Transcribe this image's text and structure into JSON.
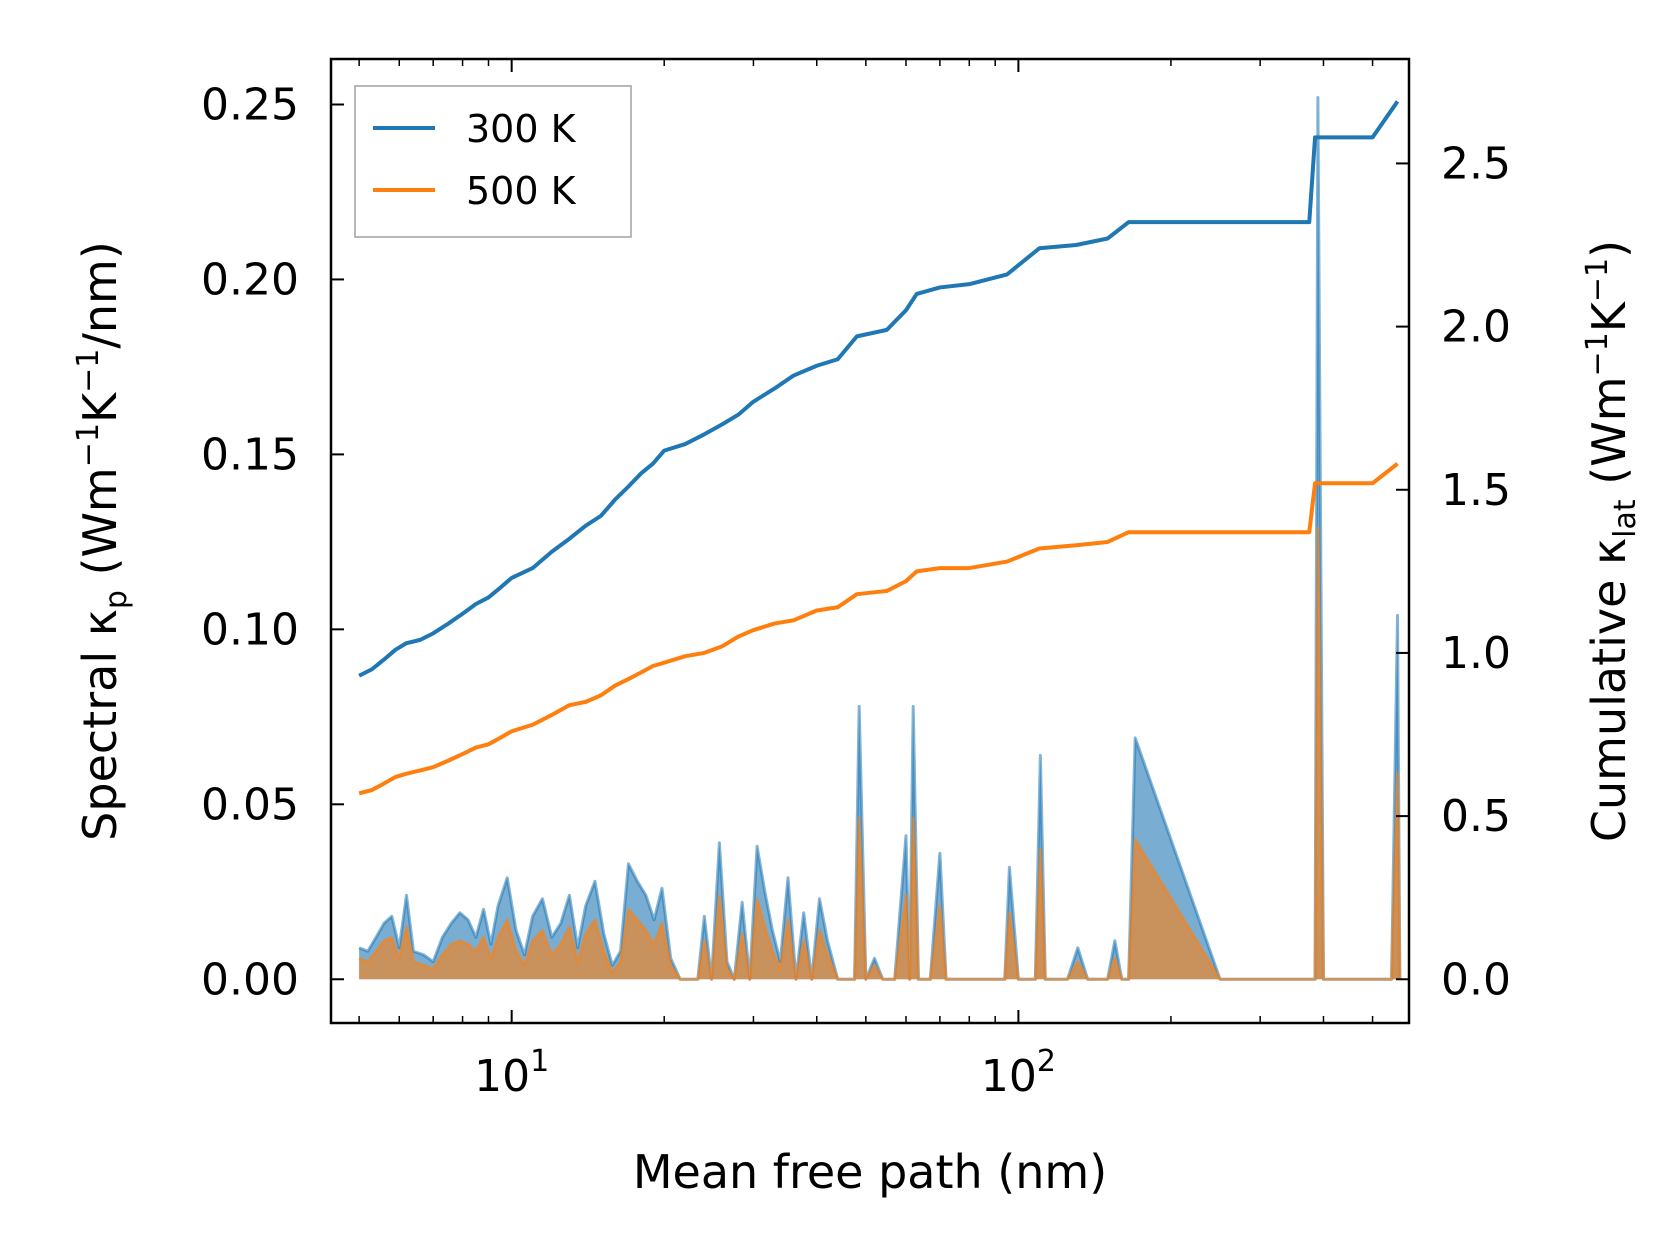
{
  "chart_data": {
    "type": "line",
    "title": "",
    "xlabel": "Mean free path (nm)",
    "ylabel_left": {
      "main": "Spectral κ",
      "sub": "p",
      "unit_prefix": " (Wm",
      "exp1": "−1",
      "mid": "K",
      "exp2": "−1",
      "unit_suffix": "/nm)"
    },
    "ylabel_right": {
      "main": "Cumulative κ",
      "sub": "lat",
      "unit_prefix": " (Wm",
      "exp1": "−1",
      "mid": "K",
      "exp2": "−1",
      "unit_suffix": ")"
    },
    "x_scale": "log",
    "xlim": [
      4.4,
      590
    ],
    "ylim_left": [
      -0.0125,
      0.263
    ],
    "ylim_right": [
      -0.134,
      2.82
    ],
    "x_ticks": [
      {
        "base": "10",
        "exp": "1",
        "value": 10
      },
      {
        "base": "10",
        "exp": "2",
        "value": 100
      }
    ],
    "y_ticks_left": [
      "0.00",
      "0.05",
      "0.10",
      "0.15",
      "0.20",
      "0.25"
    ],
    "y_tick_values_left": [
      0,
      0.05,
      0.1,
      0.15,
      0.2,
      0.25
    ],
    "y_ticks_right": [
      "0.0",
      "0.5",
      "1.0",
      "1.5",
      "2.0",
      "2.5"
    ],
    "y_tick_values_right": [
      0,
      0.5,
      1.0,
      1.5,
      2.0,
      2.5
    ],
    "legend": {
      "location": "upper-left",
      "entries": [
        "300 K",
        "500 K"
      ]
    },
    "colors": {
      "300 K": "#1f77b4",
      "500 K": "#ff7f0e"
    },
    "cumulative_series": [
      {
        "name": "300 K",
        "axis": "right",
        "x": [
          5.0,
          5.3,
          5.6,
          5.9,
          6.2,
          6.6,
          7.0,
          7.5,
          8.0,
          8.5,
          9.0,
          9.5,
          10.0,
          11.0,
          12.0,
          13.0,
          14.0,
          15.0,
          16.0,
          17.0,
          18.0,
          19.0,
          20.0,
          22.0,
          24.0,
          26.0,
          28.0,
          30.0,
          33.0,
          36.0,
          40.0,
          44.0,
          48.0,
          55.0,
          60.0,
          63.0,
          70.0,
          80.0,
          95.0,
          110.0,
          130.0,
          150.0,
          165.0,
          200.0,
          300.0,
          375.0,
          385.0,
          400.0,
          500.0,
          560.0
        ],
        "y": [
          0.93,
          0.95,
          0.98,
          1.01,
          1.03,
          1.04,
          1.06,
          1.09,
          1.12,
          1.15,
          1.17,
          1.2,
          1.23,
          1.26,
          1.31,
          1.35,
          1.39,
          1.42,
          1.47,
          1.51,
          1.55,
          1.58,
          1.62,
          1.64,
          1.67,
          1.7,
          1.73,
          1.77,
          1.81,
          1.85,
          1.88,
          1.9,
          1.97,
          1.99,
          2.05,
          2.1,
          2.12,
          2.13,
          2.16,
          2.24,
          2.25,
          2.27,
          2.32,
          2.32,
          2.32,
          2.32,
          2.58,
          2.58,
          2.58,
          2.69
        ]
      },
      {
        "name": "500 K",
        "axis": "right",
        "x": [
          5.0,
          5.3,
          5.6,
          5.9,
          6.2,
          6.6,
          7.0,
          7.5,
          8.0,
          8.5,
          9.0,
          9.5,
          10.0,
          11.0,
          12.0,
          13.0,
          14.0,
          15.0,
          16.0,
          17.0,
          18.0,
          19.0,
          20.0,
          22.0,
          24.0,
          26.0,
          28.0,
          30.0,
          33.0,
          36.0,
          40.0,
          44.0,
          48.0,
          55.0,
          60.0,
          63.0,
          70.0,
          80.0,
          95.0,
          110.0,
          130.0,
          150.0,
          165.0,
          200.0,
          300.0,
          375.0,
          385.0,
          400.0,
          500.0,
          560.0
        ],
        "y": [
          0.57,
          0.58,
          0.6,
          0.62,
          0.63,
          0.64,
          0.65,
          0.67,
          0.69,
          0.71,
          0.72,
          0.74,
          0.76,
          0.78,
          0.81,
          0.84,
          0.85,
          0.87,
          0.9,
          0.92,
          0.94,
          0.96,
          0.97,
          0.99,
          1.0,
          1.02,
          1.05,
          1.07,
          1.09,
          1.1,
          1.13,
          1.14,
          1.18,
          1.19,
          1.22,
          1.25,
          1.26,
          1.26,
          1.28,
          1.32,
          1.33,
          1.34,
          1.37,
          1.37,
          1.37,
          1.37,
          1.52,
          1.52,
          1.52,
          1.58
        ]
      }
    ],
    "spectral_series": [
      {
        "name": "300 K",
        "axis": "left",
        "x": [
          5.0,
          5.2,
          5.4,
          5.6,
          5.8,
          6.0,
          6.2,
          6.4,
          6.7,
          7.0,
          7.3,
          7.6,
          7.9,
          8.2,
          8.5,
          8.8,
          9.1,
          9.4,
          9.8,
          10.2,
          10.6,
          11.0,
          11.5,
          12.0,
          12.5,
          13.0,
          13.5,
          14.0,
          14.6,
          15.2,
          15.8,
          16.4,
          17.0,
          17.7,
          18.4,
          19.1,
          19.8,
          20.6,
          21.5,
          22.4,
          23.3,
          24.0,
          24.8,
          25.7,
          26.6,
          27.5,
          28.5,
          29.5,
          30.5,
          31.6,
          32.7,
          33.9,
          35.1,
          36.4,
          37.7,
          39.1,
          40.5,
          42.0,
          44.0,
          46.0,
          47.5,
          48.5,
          50.0,
          52.0,
          54.0,
          57.0,
          60.0,
          61.0,
          62.0,
          63.5,
          65.0,
          67.0,
          70.0,
          72.0,
          74.0,
          90.0,
          94.0,
          96.0,
          100.0,
          108.0,
          110.5,
          113.0,
          125.0,
          131.0,
          137.0,
          145.0,
          150.0,
          155.0,
          160.0,
          165.0,
          170.0,
          250.0,
          370.0,
          380.0,
          385.0,
          390.0,
          400.0,
          530.0,
          545.0,
          560.0,
          566.0
        ],
        "y": [
          0.009,
          0.008,
          0.012,
          0.016,
          0.018,
          0.009,
          0.024,
          0.008,
          0.007,
          0.005,
          0.012,
          0.016,
          0.019,
          0.017,
          0.012,
          0.02,
          0.01,
          0.021,
          0.029,
          0.014,
          0.007,
          0.018,
          0.023,
          0.012,
          0.016,
          0.024,
          0.009,
          0.021,
          0.028,
          0.013,
          0.004,
          0.008,
          0.033,
          0.028,
          0.024,
          0.017,
          0.026,
          0.006,
          0.0,
          0.0,
          0.0,
          0.018,
          0.0,
          0.039,
          0.005,
          0.0,
          0.022,
          0.0,
          0.038,
          0.025,
          0.014,
          0.005,
          0.029,
          0.0,
          0.019,
          0.0,
          0.023,
          0.011,
          0.0,
          0.0,
          0.0,
          0.078,
          0.0,
          0.006,
          0.0,
          0.0,
          0.041,
          0.0,
          0.078,
          0.0,
          0.0,
          0.0,
          0.036,
          0.0,
          0.0,
          0.0,
          0.0,
          0.032,
          0.0,
          0.0,
          0.064,
          0.0,
          0.0,
          0.009,
          0.0,
          0.0,
          0.0,
          0.011,
          0.0,
          0.0,
          0.069,
          0.0,
          0.0,
          0.0,
          0.0,
          0.252,
          0.0,
          0.0,
          0.0,
          0.104,
          0.0
        ]
      },
      {
        "name": "500 K",
        "axis": "left",
        "x": [
          5.0,
          5.2,
          5.4,
          5.6,
          5.8,
          6.0,
          6.2,
          6.4,
          6.7,
          7.0,
          7.3,
          7.6,
          7.9,
          8.2,
          8.5,
          8.8,
          9.1,
          9.4,
          9.8,
          10.2,
          10.6,
          11.0,
          11.5,
          12.0,
          12.5,
          13.0,
          13.5,
          14.0,
          14.6,
          15.2,
          15.8,
          16.4,
          17.0,
          17.7,
          18.4,
          19.1,
          19.8,
          20.6,
          21.5,
          22.4,
          23.3,
          24.0,
          24.8,
          25.7,
          26.6,
          27.5,
          28.5,
          29.5,
          30.5,
          31.6,
          32.7,
          33.9,
          35.1,
          36.4,
          37.7,
          39.1,
          40.5,
          42.0,
          44.0,
          46.0,
          47.5,
          48.5,
          50.0,
          52.0,
          54.0,
          57.0,
          60.0,
          61.0,
          62.0,
          63.5,
          65.0,
          67.0,
          70.0,
          72.0,
          74.0,
          90.0,
          94.0,
          96.0,
          100.0,
          108.0,
          110.5,
          113.0,
          125.0,
          131.0,
          137.0,
          145.0,
          150.0,
          155.0,
          160.0,
          165.0,
          170.0,
          250.0,
          370.0,
          380.0,
          385.0,
          390.0,
          400.0,
          530.0,
          545.0,
          560.0,
          566.0
        ],
        "y": [
          0.006,
          0.005,
          0.008,
          0.011,
          0.012,
          0.006,
          0.015,
          0.005,
          0.004,
          0.003,
          0.007,
          0.01,
          0.011,
          0.01,
          0.008,
          0.012,
          0.006,
          0.012,
          0.017,
          0.008,
          0.004,
          0.011,
          0.014,
          0.007,
          0.01,
          0.015,
          0.005,
          0.013,
          0.017,
          0.008,
          0.002,
          0.005,
          0.02,
          0.017,
          0.014,
          0.01,
          0.016,
          0.004,
          0.0,
          0.0,
          0.0,
          0.011,
          0.0,
          0.024,
          0.003,
          0.0,
          0.013,
          0.0,
          0.023,
          0.015,
          0.008,
          0.003,
          0.017,
          0.0,
          0.011,
          0.0,
          0.014,
          0.007,
          0.0,
          0.0,
          0.0,
          0.046,
          0.0,
          0.004,
          0.0,
          0.0,
          0.024,
          0.0,
          0.046,
          0.0,
          0.0,
          0.0,
          0.021,
          0.0,
          0.0,
          0.0,
          0.0,
          0.019,
          0.0,
          0.0,
          0.037,
          0.0,
          0.0,
          0.005,
          0.0,
          0.0,
          0.0,
          0.006,
          0.0,
          0.0,
          0.04,
          0.0,
          0.0,
          0.0,
          0.0,
          0.129,
          0.0,
          0.0,
          0.0,
          0.059,
          0.0
        ]
      }
    ]
  }
}
